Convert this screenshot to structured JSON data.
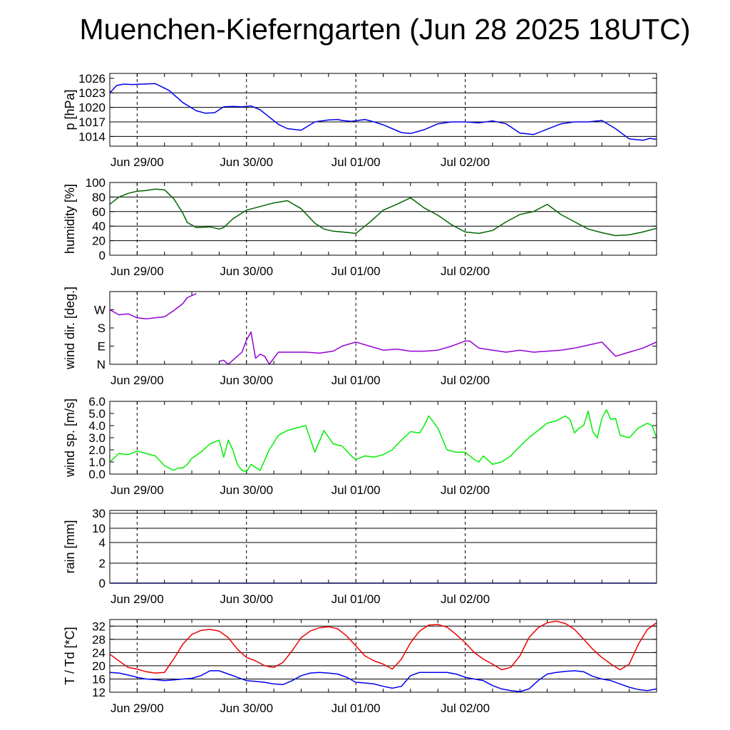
{
  "title": "Muenchen-Kieferngarten (Jun 28 2025 18UTC)",
  "colors": {
    "pressure": "#0000ee",
    "humidity": "#006400",
    "wind_dir": "#9400d3",
    "wind_speed": "#00ee00",
    "temperature": "#ee0000",
    "dewpoint": "#0000ee"
  },
  "chart_data": [
    {
      "id": "pressure",
      "type": "line",
      "ylabel": "p [hPa]",
      "ytick_labels": [
        "1014",
        "1017",
        "1020",
        "1023",
        "1026"
      ],
      "ylim": [
        1012,
        1027
      ],
      "xlim": [
        -6,
        114
      ],
      "xtick_labels": [
        "Jun 29/00",
        "Jun 30/00",
        "Jul 01/00",
        "Jul 02/00"
      ],
      "xtick_hours": [
        0,
        24,
        48,
        72
      ],
      "grid": true,
      "x_hours": [
        -6,
        -4.5,
        -3,
        -1,
        1,
        4,
        7,
        10,
        13,
        15,
        17,
        19,
        21,
        23,
        25,
        27,
        29,
        31,
        33,
        36,
        39,
        42,
        44,
        45,
        47,
        50,
        52,
        54,
        56,
        58,
        60,
        63,
        66,
        69,
        72,
        75,
        78,
        81,
        84,
        87,
        90,
        93,
        96,
        99,
        102,
        105,
        108,
        111,
        112.5,
        114
      ],
      "series": [
        {
          "name": "",
          "values": [
            1023,
            1024.5,
            1024.8,
            1024.7,
            1024.8,
            1024.9,
            1023.5,
            1021,
            1019.3,
            1018.8,
            1018.9,
            1020.1,
            1020.2,
            1020.1,
            1020.3,
            1019.5,
            1018,
            1016.5,
            1015.6,
            1015.3,
            1017,
            1017.4,
            1017.5,
            1017.3,
            1017.1,
            1017.5,
            1017,
            1016.4,
            1015.6,
            1014.8,
            1014.6,
            1015.4,
            1016.6,
            1017,
            1017,
            1016.8,
            1017.2,
            1016.6,
            1014.7,
            1014.4,
            1015.5,
            1016.6,
            1017,
            1017,
            1017.3,
            1015.6,
            1013.5,
            1013.2,
            1013.6,
            1013.4
          ]
        }
      ]
    },
    {
      "id": "humidity",
      "type": "line",
      "ylabel": "humidity [%]",
      "ytick_labels": [
        "0",
        "20",
        "40",
        "60",
        "80",
        "100"
      ],
      "ylim": [
        0,
        100
      ],
      "xlim": [
        -6,
        114
      ],
      "xtick_labels": [
        "Jun 29/00",
        "Jun 30/00",
        "Jul 01/00",
        "Jul 02/00"
      ],
      "xtick_hours": [
        0,
        24,
        48,
        72
      ],
      "grid": true,
      "x_hours": [
        -6,
        -4,
        -2,
        0,
        2,
        4,
        6,
        8,
        10,
        11,
        13,
        16,
        18,
        19,
        21,
        24,
        27,
        30,
        33,
        36,
        39,
        41,
        43,
        45,
        48,
        51,
        54,
        57,
        60,
        63,
        66,
        69,
        72,
        75,
        78,
        81,
        84,
        87,
        90,
        93,
        96,
        99,
        102,
        105,
        108,
        111,
        114
      ],
      "series": [
        {
          "name": "",
          "values": [
            70,
            80,
            85,
            88,
            89,
            91,
            90,
            78,
            58,
            45,
            38,
            39,
            36,
            38,
            50,
            62,
            67,
            72,
            75,
            64,
            44,
            36,
            33,
            32,
            30,
            45,
            62,
            70,
            79,
            65,
            55,
            42,
            32,
            30,
            34,
            46,
            56,
            60,
            70,
            56,
            46,
            36,
            31,
            27,
            28,
            32,
            37
          ]
        }
      ]
    },
    {
      "id": "wind_direction",
      "type": "line",
      "ylabel": "wind dir. [deg.]",
      "ytick_labels": [
        "N",
        "E",
        "S",
        "W"
      ],
      "ylim": [
        0,
        360
      ],
      "xlim": [
        -6,
        114
      ],
      "xtick_labels": [
        "Jun 29/00",
        "Jun 30/00",
        "Jul 01/00",
        "Jul 02/00"
      ],
      "xtick_hours": [
        0,
        24,
        48,
        72
      ],
      "grid": false,
      "x_hours": [
        -6,
        -4,
        -2,
        0,
        2,
        4,
        6,
        8,
        10,
        11,
        13,
        16,
        18,
        19,
        20,
        21,
        23,
        24,
        25,
        26,
        27,
        28,
        29,
        31,
        34,
        37,
        40,
        43,
        45,
        48,
        51,
        54,
        57,
        60,
        63,
        66,
        69,
        72,
        73,
        75,
        78,
        81,
        84,
        87,
        90,
        93,
        96,
        99,
        102,
        105,
        108,
        111,
        114
      ],
      "series": [
        {
          "name": "",
          "values": [
            270,
            245,
            250,
            230,
            225,
            230,
            235,
            265,
            300,
            330,
            350,
            null,
            15,
            20,
            0,
            20,
            60,
            120,
            160,
            30,
            50,
            40,
            0,
            60,
            60,
            60,
            55,
            65,
            90,
            110,
            90,
            70,
            75,
            65,
            65,
            70,
            90,
            115,
            115,
            80,
            70,
            60,
            70,
            60,
            65,
            70,
            80,
            95,
            110,
            40,
            60,
            80,
            110
          ]
        }
      ]
    },
    {
      "id": "wind_speed",
      "type": "line",
      "ylabel": "wind sp. [m/s]",
      "ytick_labels": [
        "0.0",
        "1.0",
        "2.0",
        "3.0",
        "4.0",
        "5.0",
        "6.0"
      ],
      "ylim": [
        0,
        6
      ],
      "xlim": [
        -6,
        114
      ],
      "xtick_labels": [
        "Jun 29/00",
        "Jun 30/00",
        "Jul 01/00",
        "Jul 02/00"
      ],
      "xtick_hours": [
        0,
        24,
        48,
        72
      ],
      "grid": false,
      "x_hours": [
        -6,
        -4,
        -2,
        0,
        2,
        4,
        6,
        8,
        9,
        10,
        11,
        12,
        14,
        16,
        18,
        19,
        20,
        21,
        22,
        23,
        24,
        25,
        27,
        29,
        31,
        33,
        35,
        37,
        39,
        41,
        43,
        45,
        47,
        48,
        50,
        52,
        54,
        56,
        58,
        60,
        62,
        63,
        64,
        66,
        68,
        70,
        72,
        74,
        75,
        76,
        78,
        80,
        82,
        84,
        86,
        88,
        90,
        92,
        93,
        94,
        95,
        96,
        97,
        98,
        99,
        100,
        101,
        102,
        103,
        104,
        105,
        106,
        108,
        110,
        112,
        113,
        114
      ],
      "series": [
        {
          "name": "",
          "values": [
            1.0,
            1.7,
            1.6,
            1.9,
            1.7,
            1.5,
            0.7,
            0.3,
            0.5,
            0.5,
            0.8,
            1.3,
            1.8,
            2.5,
            2.8,
            1.4,
            2.8,
            2.0,
            0.8,
            0.3,
            0.2,
            0.8,
            0.3,
            2.0,
            3.2,
            3.6,
            3.8,
            4.0,
            1.8,
            3.6,
            2.5,
            2.3,
            1.5,
            1.2,
            1.5,
            1.4,
            1.6,
            2.0,
            2.8,
            3.5,
            3.4,
            4.0,
            4.8,
            3.8,
            2.0,
            1.8,
            1.8,
            1.2,
            1.0,
            1.5,
            0.8,
            1.0,
            1.5,
            2.3,
            3.0,
            3.6,
            4.2,
            4.4,
            4.6,
            4.8,
            4.5,
            3.4,
            3.8,
            4.0,
            5.2,
            3.5,
            3.0,
            4.6,
            5.3,
            4.5,
            4.6,
            3.2,
            3.0,
            3.8,
            4.2,
            4.0,
            3.0
          ]
        }
      ]
    },
    {
      "id": "rain",
      "type": "line",
      "ylabel": "rain [mm]",
      "ytick_labels": [
        "0",
        "2",
        "4",
        "10",
        "30"
      ],
      "ylim": [
        0,
        30
      ],
      "xlim": [
        -6,
        114
      ],
      "xtick_labels": [
        "Jun 29/00",
        "Jun 30/00",
        "Jul 01/00",
        "Jul 02/00"
      ],
      "xtick_hours": [
        0,
        24,
        48,
        72
      ],
      "grid": true,
      "x_hours": [
        -6,
        114
      ],
      "series": [
        {
          "name": "",
          "values": [
            0,
            0
          ]
        }
      ]
    },
    {
      "id": "temperature",
      "type": "line",
      "ylabel": "T / Td [*C]",
      "ytick_labels": [
        "12",
        "16",
        "20",
        "24",
        "28",
        "32"
      ],
      "ylim": [
        12,
        34
      ],
      "xlim": [
        -6,
        114
      ],
      "xtick_labels": [
        "Jun 29/00",
        "Jun 30/00",
        "Jul 01/00",
        "Jul 02/00"
      ],
      "xtick_hours": [
        0,
        24,
        48,
        72
      ],
      "grid": true,
      "x_hours": [
        -6,
        -4,
        -2,
        0,
        2,
        4,
        6,
        8,
        10,
        12,
        14,
        16,
        18,
        20,
        22,
        24,
        26,
        28,
        30,
        32,
        34,
        36,
        38,
        40,
        42,
        44,
        46,
        48,
        50,
        52,
        54,
        56,
        58,
        60,
        62,
        64,
        66,
        68,
        70,
        72,
        74,
        76,
        78,
        80,
        82,
        84,
        86,
        88,
        90,
        92,
        94,
        96,
        98,
        100,
        102,
        104,
        106,
        108,
        110,
        112,
        114
      ],
      "series": [
        {
          "name": "",
          "values": [
            23.5,
            21.5,
            19.5,
            19.0,
            18.2,
            17.8,
            18.0,
            22.0,
            26.5,
            29.5,
            30.7,
            31.0,
            30.5,
            28.5,
            25.0,
            22.5,
            21.5,
            20.0,
            19.5,
            21.0,
            24.5,
            28.5,
            30.5,
            31.5,
            31.8,
            31.2,
            29.0,
            26.0,
            23.0,
            21.5,
            20.5,
            19.0,
            22.0,
            27.0,
            30.5,
            32.3,
            32.5,
            31.7,
            29.5,
            27.0,
            24.0,
            22.0,
            20.5,
            18.8,
            19.5,
            23.0,
            28.5,
            31.5,
            33.0,
            33.5,
            32.8,
            31.0,
            28.0,
            25.0,
            22.5,
            20.5,
            18.8,
            20.5,
            26.5,
            31.0,
            33.0
          ]
        },
        {
          "name": "",
          "values": [
            18.0,
            17.8,
            17.2,
            16.5,
            16.0,
            15.8,
            15.5,
            15.7,
            16.0,
            16.2,
            17.0,
            18.5,
            18.5,
            17.5,
            16.5,
            15.5,
            15.3,
            15.0,
            14.5,
            14.3,
            15.5,
            17.0,
            17.8,
            18.0,
            17.8,
            17.5,
            16.5,
            15.0,
            14.8,
            14.5,
            13.8,
            13.2,
            13.8,
            17.0,
            18.0,
            18.0,
            18.0,
            18.0,
            17.5,
            16.5,
            16.0,
            15.5,
            14.0,
            13.0,
            12.5,
            12.2,
            13.0,
            15.5,
            17.5,
            18.0,
            18.3,
            18.5,
            18.2,
            16.8,
            16.0,
            15.5,
            14.5,
            13.5,
            12.8,
            12.5,
            13.0
          ]
        }
      ]
    }
  ]
}
